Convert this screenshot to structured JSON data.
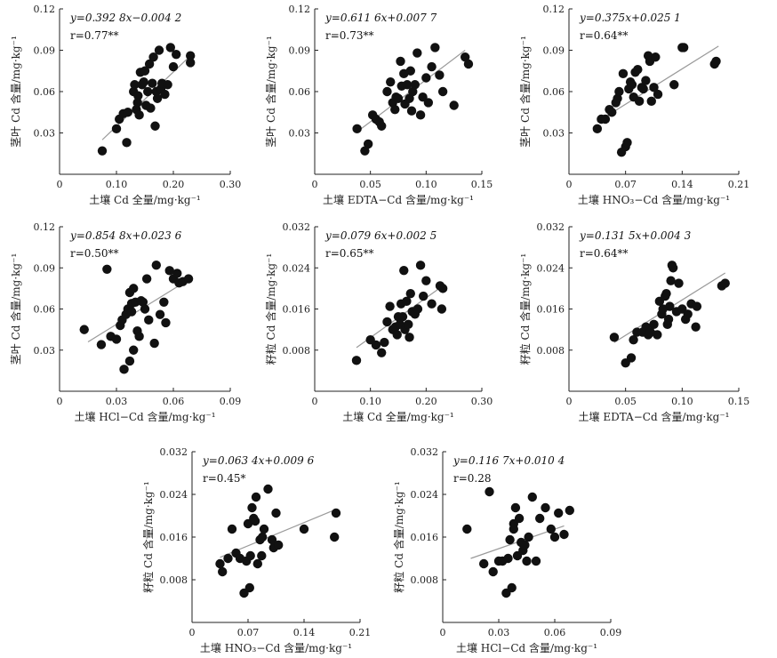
{
  "chart_data": [
    {
      "type": "scatter",
      "xlabel": "土壤 Cd 全量/mg·kg⁻¹",
      "ylabel": "茎叶 Cd 含量/mg·kg⁻¹",
      "equation": "y=0.392 8x−0.004 2",
      "r": "r=0.77**",
      "xlim": [
        0,
        0.3
      ],
      "ylim": [
        0,
        0.12
      ],
      "xticks": [
        "0",
        "0.10",
        "0.20",
        "0.30"
      ],
      "yticks": [
        "0.03",
        "0.06",
        "0.09",
        "0.12"
      ],
      "trend": [
        [
          0.075,
          0.025
        ],
        [
          0.23,
          0.086
        ]
      ],
      "points": [
        [
          0.075,
          0.017
        ],
        [
          0.1,
          0.033
        ],
        [
          0.105,
          0.04
        ],
        [
          0.112,
          0.044
        ],
        [
          0.118,
          0.023
        ],
        [
          0.12,
          0.045
        ],
        [
          0.13,
          0.06
        ],
        [
          0.132,
          0.065
        ],
        [
          0.135,
          0.047
        ],
        [
          0.137,
          0.052
        ],
        [
          0.138,
          0.057
        ],
        [
          0.14,
          0.043
        ],
        [
          0.142,
          0.074
        ],
        [
          0.145,
          0.065
        ],
        [
          0.148,
          0.067
        ],
        [
          0.15,
          0.075
        ],
        [
          0.152,
          0.05
        ],
        [
          0.155,
          0.06
        ],
        [
          0.158,
          0.08
        ],
        [
          0.16,
          0.048
        ],
        [
          0.163,
          0.066
        ],
        [
          0.165,
          0.085
        ],
        [
          0.168,
          0.035
        ],
        [
          0.17,
          0.06
        ],
        [
          0.172,
          0.055
        ],
        [
          0.175,
          0.09
        ],
        [
          0.178,
          0.062
        ],
        [
          0.18,
          0.066
        ],
        [
          0.185,
          0.058
        ],
        [
          0.19,
          0.065
        ],
        [
          0.195,
          0.092
        ],
        [
          0.2,
          0.078
        ],
        [
          0.205,
          0.087
        ],
        [
          0.23,
          0.081
        ],
        [
          0.23,
          0.086
        ]
      ]
    },
    {
      "type": "scatter",
      "xlabel": "土壤 EDTA−Cd 含量/mg·kg⁻¹",
      "ylabel": "茎叶 Cd 含量/mg·kg⁻¹",
      "equation": "y=0.611 6x+0.007 7",
      "r": "r=0.73**",
      "xlim": [
        0,
        0.15
      ],
      "ylim": [
        0,
        0.12
      ],
      "xticks": [
        "0",
        "0.05",
        "0.10",
        "0.15"
      ],
      "yticks": [
        "0.03",
        "0.06",
        "0.09",
        "0.12"
      ],
      "trend": [
        [
          0.04,
          0.032
        ],
        [
          0.135,
          0.09
        ]
      ],
      "points": [
        [
          0.038,
          0.033
        ],
        [
          0.045,
          0.017
        ],
        [
          0.048,
          0.022
        ],
        [
          0.052,
          0.043
        ],
        [
          0.055,
          0.04
        ],
        [
          0.058,
          0.038
        ],
        [
          0.06,
          0.035
        ],
        [
          0.065,
          0.06
        ],
        [
          0.068,
          0.067
        ],
        [
          0.07,
          0.052
        ],
        [
          0.072,
          0.047
        ],
        [
          0.073,
          0.056
        ],
        [
          0.075,
          0.055
        ],
        [
          0.077,
          0.082
        ],
        [
          0.078,
          0.064
        ],
        [
          0.08,
          0.073
        ],
        [
          0.081,
          0.051
        ],
        [
          0.083,
          0.065
        ],
        [
          0.085,
          0.055
        ],
        [
          0.086,
          0.075
        ],
        [
          0.087,
          0.046
        ],
        [
          0.088,
          0.06
        ],
        [
          0.09,
          0.065
        ],
        [
          0.092,
          0.088
        ],
        [
          0.095,
          0.043
        ],
        [
          0.097,
          0.056
        ],
        [
          0.1,
          0.07
        ],
        [
          0.102,
          0.052
        ],
        [
          0.105,
          0.078
        ],
        [
          0.108,
          0.092
        ],
        [
          0.112,
          0.072
        ],
        [
          0.115,
          0.06
        ],
        [
          0.135,
          0.085
        ],
        [
          0.138,
          0.08
        ],
        [
          0.125,
          0.05
        ]
      ]
    },
    {
      "type": "scatter",
      "xlabel": "土壤 HNO₃−Cd 含量/mg·kg⁻¹",
      "ylabel": "茎叶 Cd 含量/mg·kg⁻¹",
      "equation": "y=0.375x+0.025 1",
      "r": "r=0.64**",
      "xlim": [
        0,
        0.21
      ],
      "ylim": [
        0,
        0.12
      ],
      "xticks": [
        "0",
        "0.07",
        "0.14",
        "0.21"
      ],
      "yticks": [
        "0.03",
        "0.06",
        "0.09",
        "0.12"
      ],
      "trend": [
        [
          0.035,
          0.038
        ],
        [
          0.185,
          0.093
        ]
      ],
      "points": [
        [
          0.035,
          0.033
        ],
        [
          0.04,
          0.04
        ],
        [
          0.045,
          0.04
        ],
        [
          0.05,
          0.047
        ],
        [
          0.053,
          0.045
        ],
        [
          0.058,
          0.052
        ],
        [
          0.06,
          0.055
        ],
        [
          0.062,
          0.06
        ],
        [
          0.065,
          0.016
        ],
        [
          0.067,
          0.073
        ],
        [
          0.07,
          0.02
        ],
        [
          0.072,
          0.023
        ],
        [
          0.074,
          0.062
        ],
        [
          0.076,
          0.067
        ],
        [
          0.078,
          0.065
        ],
        [
          0.08,
          0.056
        ],
        [
          0.082,
          0.074
        ],
        [
          0.085,
          0.076
        ],
        [
          0.087,
          0.053
        ],
        [
          0.09,
          0.063
        ],
        [
          0.092,
          0.062
        ],
        [
          0.095,
          0.068
        ],
        [
          0.098,
          0.086
        ],
        [
          0.1,
          0.082
        ],
        [
          0.102,
          0.053
        ],
        [
          0.105,
          0.063
        ],
        [
          0.107,
          0.085
        ],
        [
          0.11,
          0.058
        ],
        [
          0.13,
          0.065
        ],
        [
          0.14,
          0.092
        ],
        [
          0.18,
          0.08
        ],
        [
          0.182,
          0.082
        ],
        [
          0.142,
          0.092
        ]
      ]
    },
    {
      "type": "scatter",
      "xlabel": "土壤 HCl−Cd 含量/mg·kg⁻¹",
      "ylabel": "茎叶 Cd 含量/mg·kg⁻¹",
      "equation": "y=0.854 8x+0.023 6",
      "r": "r=0.50**",
      "xlim": [
        0,
        0.09
      ],
      "ylim": [
        0,
        0.12
      ],
      "xticks": [
        "0",
        "0.03",
        "0.06",
        "0.09"
      ],
      "yticks": [
        "0.03",
        "0.06",
        "0.09",
        "0.12"
      ],
      "trend": [
        [
          0.015,
          0.036
        ],
        [
          0.07,
          0.083
        ]
      ],
      "points": [
        [
          0.013,
          0.045
        ],
        [
          0.022,
          0.034
        ],
        [
          0.025,
          0.089
        ],
        [
          0.027,
          0.04
        ],
        [
          0.03,
          0.038
        ],
        [
          0.032,
          0.048
        ],
        [
          0.033,
          0.052
        ],
        [
          0.034,
          0.016
        ],
        [
          0.035,
          0.056
        ],
        [
          0.036,
          0.06
        ],
        [
          0.037,
          0.072
        ],
        [
          0.038,
          0.058
        ],
        [
          0.038,
          0.064
        ],
        [
          0.039,
          0.075
        ],
        [
          0.04,
          0.065
        ],
        [
          0.041,
          0.044
        ],
        [
          0.042,
          0.04
        ],
        [
          0.043,
          0.066
        ],
        [
          0.044,
          0.065
        ],
        [
          0.045,
          0.06
        ],
        [
          0.046,
          0.082
        ],
        [
          0.047,
          0.052
        ],
        [
          0.05,
          0.035
        ],
        [
          0.051,
          0.092
        ],
        [
          0.053,
          0.056
        ],
        [
          0.055,
          0.065
        ],
        [
          0.056,
          0.05
        ],
        [
          0.058,
          0.088
        ],
        [
          0.06,
          0.082
        ],
        [
          0.062,
          0.086
        ],
        [
          0.063,
          0.079
        ],
        [
          0.065,
          0.08
        ],
        [
          0.068,
          0.082
        ],
        [
          0.037,
          0.022
        ],
        [
          0.039,
          0.03
        ]
      ]
    },
    {
      "type": "scatter",
      "xlabel": "土壤 Cd 全量/mg·kg⁻¹",
      "ylabel": "籽粒 Cd 含量/mg·kg⁻¹",
      "equation": "y=0.079 6x+0.002 5",
      "r": "r=0.65**",
      "xlim": [
        0,
        0.3
      ],
      "ylim": [
        0,
        0.032
      ],
      "xticks": [
        "0",
        "0.10",
        "0.20",
        "0.30"
      ],
      "yticks": [
        "0.008",
        "0.016",
        "0.024",
        "0.032"
      ],
      "trend": [
        [
          0.075,
          0.0085
        ],
        [
          0.23,
          0.0205
        ]
      ],
      "points": [
        [
          0.075,
          0.006
        ],
        [
          0.1,
          0.01
        ],
        [
          0.11,
          0.009
        ],
        [
          0.12,
          0.0075
        ],
        [
          0.125,
          0.0095
        ],
        [
          0.13,
          0.0135
        ],
        [
          0.135,
          0.0165
        ],
        [
          0.14,
          0.012
        ],
        [
          0.145,
          0.0125
        ],
        [
          0.148,
          0.011
        ],
        [
          0.15,
          0.0145
        ],
        [
          0.153,
          0.013
        ],
        [
          0.155,
          0.017
        ],
        [
          0.158,
          0.0145
        ],
        [
          0.16,
          0.0235
        ],
        [
          0.162,
          0.012
        ],
        [
          0.165,
          0.0175
        ],
        [
          0.168,
          0.013
        ],
        [
          0.17,
          0.0105
        ],
        [
          0.172,
          0.019
        ],
        [
          0.175,
          0.0155
        ],
        [
          0.18,
          0.015
        ],
        [
          0.185,
          0.016
        ],
        [
          0.19,
          0.0245
        ],
        [
          0.195,
          0.0185
        ],
        [
          0.2,
          0.0215
        ],
        [
          0.21,
          0.017
        ],
        [
          0.225,
          0.0205
        ],
        [
          0.228,
          0.016
        ],
        [
          0.23,
          0.02
        ]
      ]
    },
    {
      "type": "scatter",
      "xlabel": "土壤 EDTA−Cd 含量/mg·kg⁻¹",
      "ylabel": "籽粒 Cd 含量/mg·kg⁻¹",
      "equation": "y=0.131 5x+0.004 3",
      "r": "r=0.64**",
      "xlim": [
        0,
        0.15
      ],
      "ylim": [
        0,
        0.032
      ],
      "xticks": [
        "0",
        "0.05",
        "0.10",
        "0.15"
      ],
      "yticks": [
        "0.008",
        "0.016",
        "0.024",
        "0.032"
      ],
      "trend": [
        [
          0.04,
          0.0095
        ],
        [
          0.138,
          0.023
        ]
      ],
      "points": [
        [
          0.04,
          0.0105
        ],
        [
          0.05,
          0.0055
        ],
        [
          0.055,
          0.0065
        ],
        [
          0.057,
          0.01
        ],
        [
          0.06,
          0.0115
        ],
        [
          0.065,
          0.0115
        ],
        [
          0.068,
          0.0125
        ],
        [
          0.07,
          0.011
        ],
        [
          0.072,
          0.0115
        ],
        [
          0.075,
          0.013
        ],
        [
          0.078,
          0.011
        ],
        [
          0.08,
          0.0175
        ],
        [
          0.082,
          0.015
        ],
        [
          0.083,
          0.016
        ],
        [
          0.085,
          0.0185
        ],
        [
          0.086,
          0.019
        ],
        [
          0.087,
          0.013
        ],
        [
          0.088,
          0.014
        ],
        [
          0.089,
          0.0165
        ],
        [
          0.09,
          0.0215
        ],
        [
          0.091,
          0.0245
        ],
        [
          0.092,
          0.024
        ],
        [
          0.095,
          0.0155
        ],
        [
          0.097,
          0.021
        ],
        [
          0.1,
          0.016
        ],
        [
          0.103,
          0.014
        ],
        [
          0.105,
          0.015
        ],
        [
          0.108,
          0.017
        ],
        [
          0.112,
          0.0125
        ],
        [
          0.113,
          0.0165
        ],
        [
          0.135,
          0.0205
        ],
        [
          0.138,
          0.021
        ]
      ]
    },
    {
      "type": "scatter",
      "xlabel": "土壤 HNO₃−Cd 含量/mg·kg⁻¹",
      "ylabel": "籽粒 Cd 含量/mg·kg⁻¹",
      "equation": "y=0.063 4x+0.009 6",
      "r": "r=0.45*",
      "xlim": [
        0,
        0.21
      ],
      "ylim": [
        0,
        0.032
      ],
      "xticks": [
        "0",
        "0.07",
        "0.14",
        "0.21"
      ],
      "yticks": [
        "0.008",
        "0.016",
        "0.024",
        "0.032"
      ],
      "trend": [
        [
          0.035,
          0.0122
        ],
        [
          0.18,
          0.0212
        ]
      ],
      "points": [
        [
          0.035,
          0.011
        ],
        [
          0.038,
          0.0095
        ],
        [
          0.045,
          0.012
        ],
        [
          0.05,
          0.0175
        ],
        [
          0.055,
          0.013
        ],
        [
          0.06,
          0.012
        ],
        [
          0.065,
          0.0055
        ],
        [
          0.068,
          0.0115
        ],
        [
          0.07,
          0.0185
        ],
        [
          0.072,
          0.0065
        ],
        [
          0.073,
          0.0125
        ],
        [
          0.075,
          0.0215
        ],
        [
          0.077,
          0.0195
        ],
        [
          0.079,
          0.019
        ],
        [
          0.08,
          0.0235
        ],
        [
          0.082,
          0.011
        ],
        [
          0.085,
          0.0155
        ],
        [
          0.087,
          0.0125
        ],
        [
          0.088,
          0.016
        ],
        [
          0.09,
          0.0175
        ],
        [
          0.095,
          0.025
        ],
        [
          0.1,
          0.0155
        ],
        [
          0.102,
          0.014
        ],
        [
          0.105,
          0.0205
        ],
        [
          0.108,
          0.0145
        ],
        [
          0.14,
          0.0175
        ],
        [
          0.18,
          0.0205
        ],
        [
          0.178,
          0.016
        ]
      ]
    },
    {
      "type": "scatter",
      "xlabel": "土壤 HCl−Cd 含量/mg·kg⁻¹",
      "ylabel": "籽粒 Cd 含量/mg·kg⁻¹",
      "equation": "y=0.116 7x+0.010 4",
      "r": "r=0.28",
      "xlim": [
        0,
        0.09
      ],
      "ylim": [
        0,
        0.032
      ],
      "xticks": [
        "0",
        "0.03",
        "0.06",
        "0.09"
      ],
      "yticks": [
        "0.008",
        "0.016",
        "0.024",
        "0.032"
      ],
      "trend": [
        [
          0.015,
          0.012
        ],
        [
          0.065,
          0.0181
        ]
      ],
      "points": [
        [
          0.013,
          0.0175
        ],
        [
          0.022,
          0.011
        ],
        [
          0.025,
          0.0245
        ],
        [
          0.027,
          0.0095
        ],
        [
          0.03,
          0.0115
        ],
        [
          0.032,
          0.0115
        ],
        [
          0.034,
          0.0055
        ],
        [
          0.035,
          0.012
        ],
        [
          0.036,
          0.0155
        ],
        [
          0.037,
          0.0065
        ],
        [
          0.038,
          0.0185
        ],
        [
          0.038,
          0.0175
        ],
        [
          0.039,
          0.0215
        ],
        [
          0.04,
          0.0125
        ],
        [
          0.041,
          0.0195
        ],
        [
          0.042,
          0.015
        ],
        [
          0.043,
          0.0135
        ],
        [
          0.044,
          0.0145
        ],
        [
          0.045,
          0.0115
        ],
        [
          0.046,
          0.016
        ],
        [
          0.048,
          0.0235
        ],
        [
          0.05,
          0.0115
        ],
        [
          0.052,
          0.0195
        ],
        [
          0.055,
          0.0215
        ],
        [
          0.058,
          0.0175
        ],
        [
          0.06,
          0.016
        ],
        [
          0.062,
          0.0205
        ],
        [
          0.065,
          0.0165
        ],
        [
          0.068,
          0.021
        ]
      ]
    }
  ]
}
